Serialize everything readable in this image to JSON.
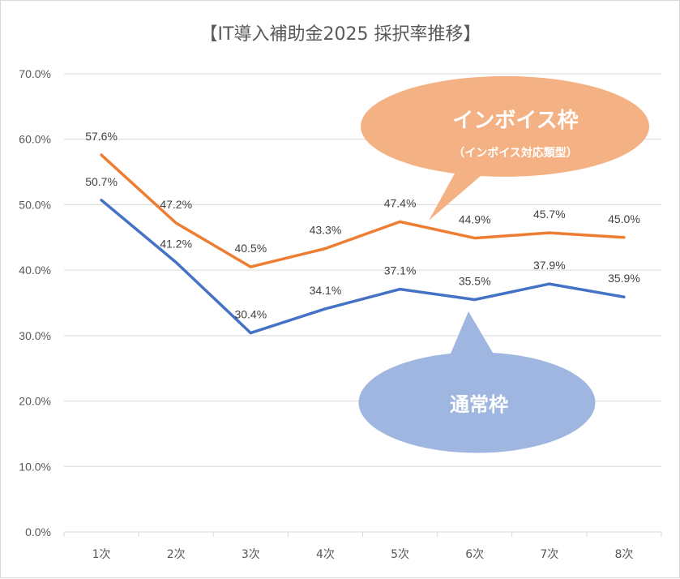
{
  "chart_data": {
    "type": "line",
    "title": "【IT導入補助金2025 採択率推移】",
    "categories": [
      "1次",
      "2次",
      "3次",
      "4次",
      "5次",
      "6次",
      "7次",
      "8次"
    ],
    "series": [
      {
        "name": "インボイス枠",
        "subtitle": "（インボイス対応類型）",
        "color": "#ed7d31",
        "values": [
          57.6,
          47.2,
          40.5,
          43.3,
          47.4,
          44.9,
          45.7,
          45.0
        ],
        "labels": [
          "57.6%",
          "47.2%",
          "40.5%",
          "43.3%",
          "47.4%",
          "44.9%",
          "45.7%",
          "45.0%"
        ]
      },
      {
        "name": "通常枠",
        "color": "#4472c4",
        "values": [
          50.7,
          41.2,
          30.4,
          34.1,
          37.1,
          35.5,
          37.9,
          35.9
        ],
        "labels": [
          "50.7%",
          "41.2%",
          "30.4%",
          "34.1%",
          "37.1%",
          "35.5%",
          "37.9%",
          "35.9%"
        ]
      }
    ],
    "ylim": [
      0,
      70
    ],
    "yticks": [
      0,
      10,
      20,
      30,
      40,
      50,
      60,
      70
    ],
    "ytick_labels": [
      "0.0%",
      "10.0%",
      "20.0%",
      "30.0%",
      "40.0%",
      "50.0%",
      "60.0%",
      "70.0%"
    ],
    "grid": true,
    "xlabel": "",
    "ylabel": "",
    "callout_colors": {
      "invoice": "#f4b183",
      "regular": "#9fb6e0"
    }
  }
}
